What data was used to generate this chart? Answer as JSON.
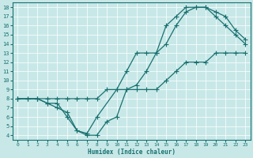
{
  "xlabel": "Humidex (Indice chaleur)",
  "bg_color": "#c8e8e8",
  "line_color": "#1a7070",
  "xlim": [
    -0.5,
    23.5
  ],
  "ylim": [
    3.5,
    18.5
  ],
  "xticks": [
    0,
    1,
    2,
    3,
    4,
    5,
    6,
    7,
    8,
    9,
    10,
    11,
    12,
    13,
    14,
    15,
    16,
    17,
    18,
    19,
    20,
    21,
    22,
    23
  ],
  "yticks": [
    4,
    5,
    6,
    7,
    8,
    9,
    10,
    11,
    12,
    13,
    14,
    15,
    16,
    17,
    18
  ],
  "line1_x": [
    0,
    1,
    2,
    3,
    4,
    5,
    6,
    7,
    8,
    9,
    10,
    11,
    12,
    13,
    14,
    15,
    16,
    17,
    18,
    19,
    20,
    21,
    22,
    23
  ],
  "line1_y": [
    8,
    8,
    8,
    8,
    8,
    8,
    8,
    8,
    8,
    9,
    9,
    9,
    9,
    9,
    9,
    10,
    11,
    12,
    12,
    12,
    13,
    13,
    13,
    13
  ],
  "line2_x": [
    0,
    1,
    2,
    3,
    4,
    5,
    6,
    7,
    8,
    9,
    10,
    11,
    12,
    13,
    14,
    15,
    16,
    17,
    18,
    19,
    20,
    21,
    22,
    23
  ],
  "line2_y": [
    8,
    8,
    8,
    7.5,
    7,
    6.5,
    4.5,
    4,
    4,
    5.5,
    6,
    9,
    9.5,
    11,
    13,
    16,
    17,
    18,
    18,
    18,
    17,
    16,
    15,
    14
  ],
  "line3_x": [
    0,
    2,
    3,
    4,
    5,
    6,
    7,
    8,
    10,
    11,
    12,
    13,
    14,
    15,
    16,
    17,
    18,
    19,
    20,
    21,
    22,
    23
  ],
  "line3_y": [
    8,
    8,
    7.5,
    7.5,
    6,
    4.5,
    4.2,
    6,
    9,
    11,
    13,
    13,
    13,
    14,
    16,
    17.5,
    18,
    18,
    17.5,
    17,
    15.5,
    14.5
  ],
  "marker_size": 2.5,
  "line_width": 0.9
}
